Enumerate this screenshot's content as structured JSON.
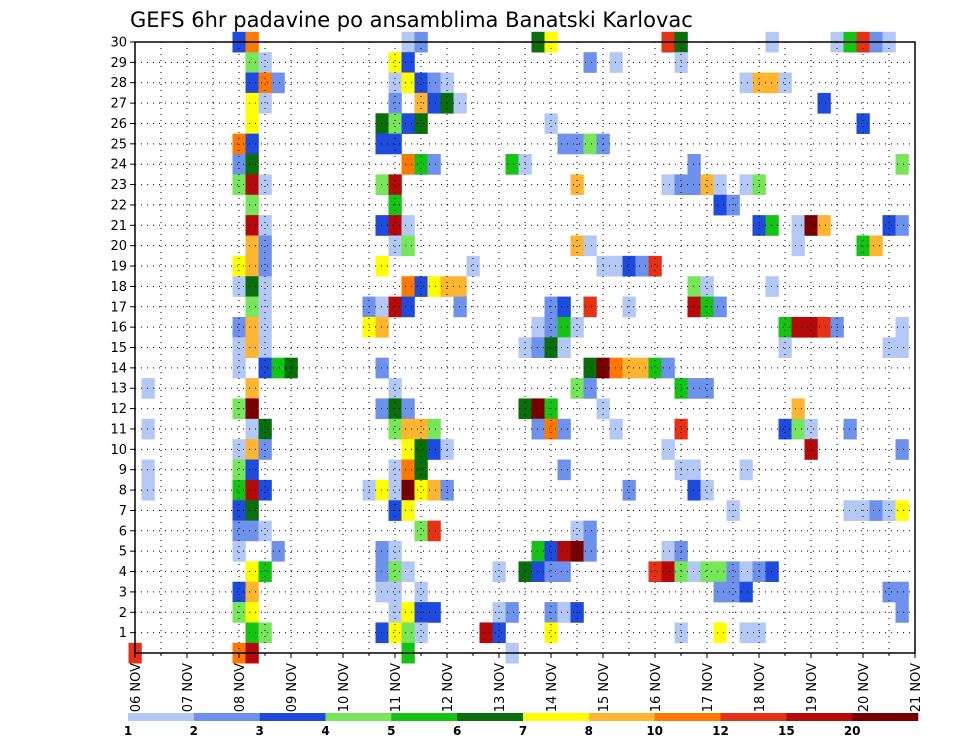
{
  "chart_data": {
    "type": "heatmap",
    "title": "GEFS 6hr padavine po ansamblima Banatski Karlovac",
    "xlabel": "",
    "ylabel": "",
    "x_ticks": [
      "06 NOV",
      "07 NOV",
      "08 NOV",
      "09 NOV",
      "10 NOV",
      "11 NOV",
      "12 NOV",
      "13 NOV",
      "14 NOV",
      "15 NOV",
      "16 NOV",
      "17 NOV",
      "18 NOV",
      "19 NOV",
      "20 NOV",
      "21 NOV"
    ],
    "y_ticks": [
      "1",
      "2",
      "3",
      "4",
      "5",
      "6",
      "7",
      "8",
      "9",
      "10",
      "11",
      "12",
      "13",
      "14",
      "15",
      "16",
      "17",
      "18",
      "19",
      "20",
      "21",
      "22",
      "23",
      "24",
      "25",
      "26",
      "27",
      "28",
      "29",
      "30"
    ],
    "x_range": [
      "06 NOV 00UTC",
      "21 NOV 00UTC"
    ],
    "y_range": [
      1,
      30
    ],
    "time_step_hours": 6,
    "grid": "dotted",
    "legend": {
      "position": "bottom",
      "labels": [
        "1",
        "2",
        "3",
        "4",
        "5",
        "6",
        "7",
        "8",
        "10",
        "12",
        "15",
        "20"
      ],
      "colors": [
        "#b4c8f5",
        "#6e91eb",
        "#1e4bdc",
        "#78e65a",
        "#14c314",
        "#0a6e0a",
        "#ffff00",
        "#ffb432",
        "#ff7800",
        "#e63214",
        "#b40a0a",
        "#780000"
      ]
    },
    "cells": [
      [
        8,
        30,
        3
      ],
      [
        8.25,
        30,
        9
      ],
      [
        11.25,
        30,
        1
      ],
      [
        11.5,
        30,
        2
      ],
      [
        13.75,
        30,
        6
      ],
      [
        14,
        30,
        7
      ],
      [
        16.25,
        30,
        10
      ],
      [
        16.5,
        30,
        6
      ],
      [
        18.25,
        30,
        1
      ],
      [
        19.5,
        30,
        1
      ],
      [
        19.75,
        30,
        5
      ],
      [
        20,
        30,
        10
      ],
      [
        20.25,
        30,
        2
      ],
      [
        20.5,
        30,
        1
      ],
      [
        8.25,
        29,
        4
      ],
      [
        8.5,
        29,
        1
      ],
      [
        11,
        29,
        7
      ],
      [
        11.25,
        29,
        3
      ],
      [
        14.75,
        29,
        2
      ],
      [
        15.25,
        29,
        1
      ],
      [
        16.5,
        29,
        1
      ],
      [
        8.25,
        28,
        3
      ],
      [
        8.5,
        28,
        9
      ],
      [
        8.75,
        28,
        2
      ],
      [
        11,
        28,
        1
      ],
      [
        11.25,
        28,
        7
      ],
      [
        11.5,
        28,
        3
      ],
      [
        11.75,
        28,
        2
      ],
      [
        12,
        28,
        1
      ],
      [
        17.75,
        28,
        1
      ],
      [
        18,
        28,
        8
      ],
      [
        18.25,
        28,
        8
      ],
      [
        18.5,
        28,
        1
      ],
      [
        8.25,
        27,
        7
      ],
      [
        8.5,
        27,
        1
      ],
      [
        11,
        27,
        2
      ],
      [
        11.5,
        27,
        8
      ],
      [
        11.75,
        27,
        3
      ],
      [
        12,
        27,
        6
      ],
      [
        12.25,
        27,
        1
      ],
      [
        19.25,
        27,
        3
      ],
      [
        8.25,
        26,
        7
      ],
      [
        10.75,
        26,
        6
      ],
      [
        11,
        26,
        4
      ],
      [
        11.25,
        26,
        3
      ],
      [
        11.5,
        26,
        6
      ],
      [
        14,
        26,
        1
      ],
      [
        20,
        26,
        3
      ],
      [
        8,
        25,
        9
      ],
      [
        8.25,
        25,
        3
      ],
      [
        10.75,
        25,
        3
      ],
      [
        11,
        25,
        3
      ],
      [
        14.25,
        25,
        2
      ],
      [
        14.5,
        25,
        2
      ],
      [
        14.75,
        25,
        4
      ],
      [
        15,
        25,
        2
      ],
      [
        8,
        24,
        2
      ],
      [
        8.25,
        24,
        6
      ],
      [
        11.25,
        24,
        9
      ],
      [
        11.5,
        24,
        5
      ],
      [
        11.75,
        24,
        2
      ],
      [
        13.25,
        24,
        5
      ],
      [
        13.5,
        24,
        1
      ],
      [
        16.75,
        24,
        2
      ],
      [
        20.75,
        24,
        4
      ],
      [
        8,
        23,
        4
      ],
      [
        8.25,
        23,
        11
      ],
      [
        8.5,
        23,
        1
      ],
      [
        10.75,
        23,
        4
      ],
      [
        11,
        23,
        11
      ],
      [
        14.5,
        23,
        8
      ],
      [
        16.25,
        23,
        1
      ],
      [
        16.5,
        23,
        2
      ],
      [
        16.75,
        23,
        2
      ],
      [
        17,
        23,
        8
      ],
      [
        17.25,
        23,
        1
      ],
      [
        17.75,
        23,
        1
      ],
      [
        18,
        23,
        4
      ],
      [
        8.25,
        22,
        4
      ],
      [
        11,
        22,
        5
      ],
      [
        17.25,
        22,
        3
      ],
      [
        17.5,
        22,
        2
      ],
      [
        8.25,
        21,
        11
      ],
      [
        8.5,
        21,
        1
      ],
      [
        10.75,
        21,
        3
      ],
      [
        11,
        21,
        11
      ],
      [
        11.25,
        21,
        1
      ],
      [
        18,
        21,
        3
      ],
      [
        18.25,
        21,
        5
      ],
      [
        18.75,
        21,
        1
      ],
      [
        19,
        21,
        12
      ],
      [
        19.25,
        21,
        8
      ],
      [
        20.5,
        21,
        3
      ],
      [
        20.75,
        21,
        2
      ],
      [
        8.25,
        20,
        8
      ],
      [
        8.5,
        20,
        2
      ],
      [
        11,
        20,
        1
      ],
      [
        11.25,
        20,
        4
      ],
      [
        14.5,
        20,
        8
      ],
      [
        14.75,
        20,
        1
      ],
      [
        18.75,
        20,
        1
      ],
      [
        20,
        20,
        5
      ],
      [
        20.25,
        20,
        8
      ],
      [
        8,
        19,
        7
      ],
      [
        8.25,
        19,
        8
      ],
      [
        8.5,
        19,
        2
      ],
      [
        10.75,
        19,
        7
      ],
      [
        12.5,
        19,
        1
      ],
      [
        15,
        19,
        1
      ],
      [
        15.25,
        19,
        1
      ],
      [
        15.5,
        19,
        3
      ],
      [
        15.75,
        19,
        2
      ],
      [
        16,
        19,
        10
      ],
      [
        8,
        18,
        1
      ],
      [
        8.25,
        18,
        6
      ],
      [
        8.5,
        18,
        1
      ],
      [
        11.25,
        18,
        9
      ],
      [
        11.5,
        18,
        3
      ],
      [
        11.75,
        18,
        7
      ],
      [
        12,
        18,
        8
      ],
      [
        12.25,
        18,
        8
      ],
      [
        16.75,
        18,
        4
      ],
      [
        17,
        18,
        1
      ],
      [
        18.25,
        18,
        1
      ],
      [
        8.25,
        17,
        4
      ],
      [
        8.5,
        17,
        1
      ],
      [
        10.5,
        17,
        2
      ],
      [
        10.75,
        17,
        1
      ],
      [
        11,
        17,
        11
      ],
      [
        11.25,
        17,
        3
      ],
      [
        12.25,
        17,
        2
      ],
      [
        14,
        17,
        2
      ],
      [
        14.25,
        17,
        3
      ],
      [
        14.75,
        17,
        10
      ],
      [
        15.5,
        17,
        1
      ],
      [
        16.75,
        17,
        11
      ],
      [
        17,
        17,
        5
      ],
      [
        17.25,
        17,
        2
      ],
      [
        8,
        16,
        2
      ],
      [
        8.25,
        16,
        8
      ],
      [
        8.5,
        16,
        1
      ],
      [
        10.5,
        16,
        7
      ],
      [
        10.75,
        16,
        8
      ],
      [
        13.75,
        16,
        1
      ],
      [
        14,
        16,
        2
      ],
      [
        14.25,
        16,
        5
      ],
      [
        14.5,
        16,
        1
      ],
      [
        18.5,
        16,
        5
      ],
      [
        18.75,
        16,
        11
      ],
      [
        19,
        16,
        11
      ],
      [
        19.25,
        16,
        10
      ],
      [
        19.5,
        16,
        2
      ],
      [
        20.75,
        16,
        1
      ],
      [
        8,
        15,
        1
      ],
      [
        8.25,
        15,
        8
      ],
      [
        8.5,
        15,
        1
      ],
      [
        13.5,
        15,
        1
      ],
      [
        13.75,
        15,
        2
      ],
      [
        14,
        15,
        6
      ],
      [
        14.25,
        15,
        1
      ],
      [
        18.5,
        15,
        1
      ],
      [
        20.5,
        15,
        1
      ],
      [
        20.75,
        15,
        1
      ],
      [
        8,
        14,
        1
      ],
      [
        8.5,
        14,
        3
      ],
      [
        8.75,
        14,
        5
      ],
      [
        9,
        14,
        6
      ],
      [
        10.75,
        14,
        2
      ],
      [
        14.75,
        14,
        6
      ],
      [
        15,
        14,
        12
      ],
      [
        15.25,
        14,
        9
      ],
      [
        15.5,
        14,
        8
      ],
      [
        15.75,
        14,
        8
      ],
      [
        16,
        14,
        5
      ],
      [
        16.25,
        14,
        2
      ],
      [
        6.25,
        13,
        1
      ],
      [
        8.25,
        13,
        8
      ],
      [
        11,
        13,
        1
      ],
      [
        14.5,
        13,
        4
      ],
      [
        14.75,
        13,
        2
      ],
      [
        16.5,
        13,
        5
      ],
      [
        16.75,
        13,
        2
      ],
      [
        17,
        13,
        2
      ],
      [
        8,
        12,
        4
      ],
      [
        8.25,
        12,
        12
      ],
      [
        10.75,
        12,
        2
      ],
      [
        11,
        12,
        6
      ],
      [
        11.25,
        12,
        2
      ],
      [
        13.5,
        12,
        6
      ],
      [
        13.75,
        12,
        12
      ],
      [
        14,
        12,
        5
      ],
      [
        15,
        12,
        1
      ],
      [
        18.75,
        12,
        8
      ],
      [
        6.25,
        11,
        1
      ],
      [
        8.25,
        11,
        1
      ],
      [
        8.5,
        11,
        6
      ],
      [
        11,
        11,
        4
      ],
      [
        11.25,
        11,
        8
      ],
      [
        11.5,
        11,
        8
      ],
      [
        11.75,
        11,
        4
      ],
      [
        13.75,
        11,
        2
      ],
      [
        14,
        11,
        9
      ],
      [
        14.25,
        11,
        2
      ],
      [
        15.25,
        11,
        1
      ],
      [
        16.5,
        11,
        10
      ],
      [
        18.5,
        11,
        3
      ],
      [
        18.75,
        11,
        4
      ],
      [
        19,
        11,
        1
      ],
      [
        19.75,
        11,
        2
      ],
      [
        8,
        10,
        1
      ],
      [
        8.25,
        10,
        8
      ],
      [
        8.5,
        10,
        2
      ],
      [
        11.25,
        10,
        7
      ],
      [
        11.5,
        10,
        6
      ],
      [
        11.75,
        10,
        3
      ],
      [
        12,
        10,
        1
      ],
      [
        16.25,
        10,
        1
      ],
      [
        19,
        10,
        11
      ],
      [
        20.75,
        10,
        2
      ],
      [
        6.25,
        9,
        1
      ],
      [
        8,
        9,
        4
      ],
      [
        8.25,
        9,
        3
      ],
      [
        11,
        9,
        1
      ],
      [
        11.25,
        9,
        9
      ],
      [
        11.5,
        9,
        6
      ],
      [
        14.25,
        9,
        2
      ],
      [
        16.5,
        9,
        1
      ],
      [
        16.75,
        9,
        1
      ],
      [
        17.75,
        9,
        1
      ],
      [
        6.25,
        8,
        1
      ],
      [
        8,
        8,
        5
      ],
      [
        8.25,
        8,
        11
      ],
      [
        8.5,
        8,
        3
      ],
      [
        10.5,
        8,
        1
      ],
      [
        10.75,
        8,
        7
      ],
      [
        11,
        8,
        1
      ],
      [
        11.25,
        8,
        12
      ],
      [
        11.5,
        8,
        7
      ],
      [
        11.75,
        8,
        8
      ],
      [
        12,
        8,
        2
      ],
      [
        15.5,
        8,
        2
      ],
      [
        16.75,
        8,
        3
      ],
      [
        17,
        8,
        1
      ],
      [
        8,
        7,
        3
      ],
      [
        8.25,
        7,
        6
      ],
      [
        11,
        7,
        3
      ],
      [
        11.25,
        7,
        7
      ],
      [
        17.5,
        7,
        1
      ],
      [
        19.75,
        7,
        1
      ],
      [
        20,
        7,
        1
      ],
      [
        20.25,
        7,
        2
      ],
      [
        20.5,
        7,
        1
      ],
      [
        20.75,
        7,
        7
      ],
      [
        8,
        6,
        2
      ],
      [
        8.25,
        6,
        2
      ],
      [
        8.5,
        6,
        1
      ],
      [
        11.5,
        6,
        4
      ],
      [
        11.75,
        6,
        10
      ],
      [
        14.5,
        6,
        1
      ],
      [
        14.75,
        6,
        2
      ],
      [
        8,
        5,
        1
      ],
      [
        8.75,
        5,
        2
      ],
      [
        10.75,
        5,
        2
      ],
      [
        11,
        5,
        1
      ],
      [
        13.75,
        5,
        5
      ],
      [
        14,
        5,
        3
      ],
      [
        14.25,
        5,
        11
      ],
      [
        14.5,
        5,
        12
      ],
      [
        14.75,
        5,
        2
      ],
      [
        16.25,
        5,
        1
      ],
      [
        16.5,
        5,
        2
      ],
      [
        8.25,
        4,
        7
      ],
      [
        8.5,
        4,
        5
      ],
      [
        10.75,
        4,
        2
      ],
      [
        11,
        4,
        4
      ],
      [
        11.25,
        4,
        1
      ],
      [
        13,
        4,
        1
      ],
      [
        13.5,
        4,
        6
      ],
      [
        13.75,
        4,
        3
      ],
      [
        14,
        4,
        2
      ],
      [
        14.25,
        4,
        2
      ],
      [
        16,
        4,
        10
      ],
      [
        16.25,
        4,
        11
      ],
      [
        16.5,
        4,
        4
      ],
      [
        16.75,
        4,
        1
      ],
      [
        17,
        4,
        4
      ],
      [
        17.25,
        4,
        4
      ],
      [
        17.5,
        4,
        2
      ],
      [
        17.75,
        4,
        1
      ],
      [
        18,
        4,
        2
      ],
      [
        18.25,
        4,
        3
      ],
      [
        8,
        3,
        3
      ],
      [
        8.25,
        3,
        8
      ],
      [
        10.75,
        3,
        1
      ],
      [
        11,
        3,
        1
      ],
      [
        11.5,
        3,
        1
      ],
      [
        17.25,
        3,
        2
      ],
      [
        17.5,
        3,
        2
      ],
      [
        17.75,
        3,
        3
      ],
      [
        20.5,
        3,
        2
      ],
      [
        20.75,
        3,
        2
      ],
      [
        8,
        2,
        4
      ],
      [
        8.25,
        2,
        7
      ],
      [
        11,
        2,
        1
      ],
      [
        11.25,
        2,
        7
      ],
      [
        11.5,
        2,
        3
      ],
      [
        11.75,
        2,
        3
      ],
      [
        13,
        2,
        1
      ],
      [
        13.25,
        2,
        2
      ],
      [
        14,
        2,
        2
      ],
      [
        14.25,
        2,
        1
      ],
      [
        14.5,
        2,
        3
      ],
      [
        20.75,
        2,
        2
      ],
      [
        8.25,
        1,
        5
      ],
      [
        8.5,
        1,
        4
      ],
      [
        10.75,
        1,
        3
      ],
      [
        11,
        1,
        7
      ],
      [
        11.25,
        1,
        4
      ],
      [
        11.5,
        1,
        1
      ],
      [
        12.75,
        1,
        11
      ],
      [
        13,
        1,
        3
      ],
      [
        14,
        1,
        7
      ],
      [
        16.5,
        1,
        1
      ],
      [
        17.25,
        1,
        7
      ],
      [
        17.75,
        1,
        1
      ],
      [
        18,
        1,
        1
      ],
      [
        6,
        0,
        10
      ],
      [
        8,
        0,
        9
      ],
      [
        8.25,
        0,
        11
      ],
      [
        11.25,
        0,
        5
      ],
      [
        13.25,
        0,
        1
      ]
    ]
  }
}
